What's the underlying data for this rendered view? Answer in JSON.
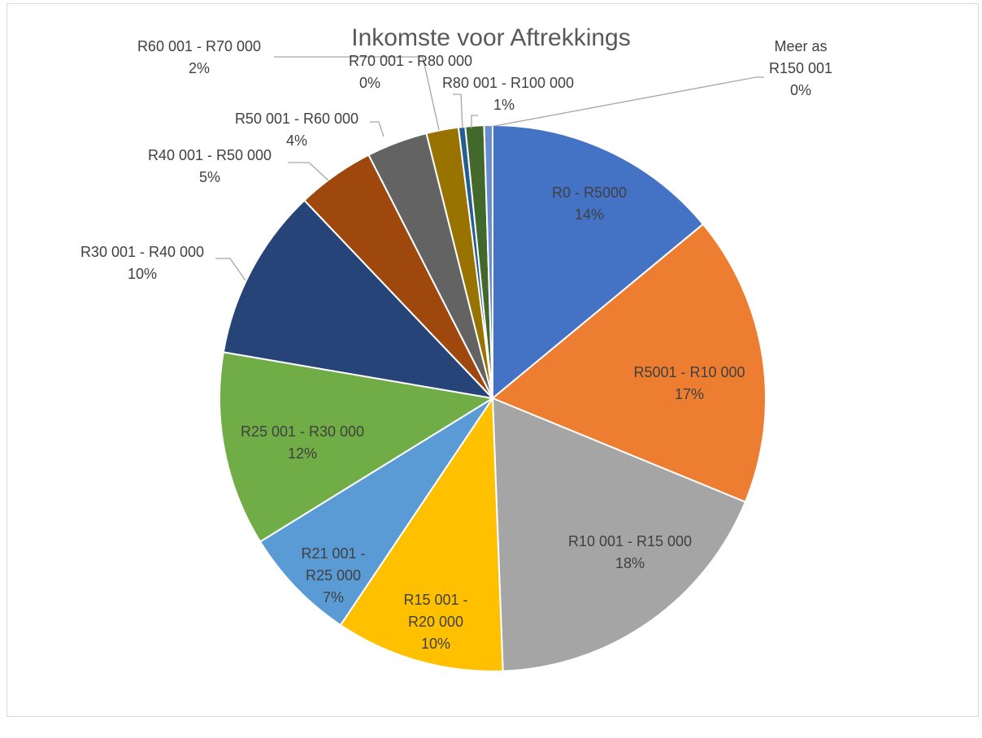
{
  "chart_data": {
    "type": "pie",
    "title": "Inkomste voor Aftrekkings",
    "categories": [
      "R0 - R5000",
      "R5001 - R10 000",
      "R10 001 - R15 000",
      "R15 001 - R20 000",
      "R21 001 - R25 000",
      "R25 001 - R30 000",
      "R30 001 - R40 000",
      "R40 001 - R50 000",
      "R50 001 - R60 000",
      "R60 001 - R70 000",
      "R70 001 - R80 000",
      "R80 001 - R100 000",
      "Meer as R150 001"
    ],
    "values": [
      14.0,
      17.2,
      18.2,
      10.0,
      6.8,
      11.5,
      10.2,
      4.6,
      3.6,
      1.9,
      0.4,
      1.1,
      0.5
    ],
    "value_labels": [
      "14%",
      "17%",
      "18%",
      "10%",
      "7%",
      "12%",
      "10%",
      "5%",
      "4%",
      "2%",
      "0%",
      "1%",
      "0%"
    ],
    "colors": [
      "#4472c4",
      "#ed7d31",
      "#a5a5a5",
      "#ffc000",
      "#5b9bd5",
      "#70ad47",
      "#264478",
      "#9e480e",
      "#636363",
      "#997300",
      "#255e91",
      "#43682b",
      "#698ed0"
    ]
  }
}
